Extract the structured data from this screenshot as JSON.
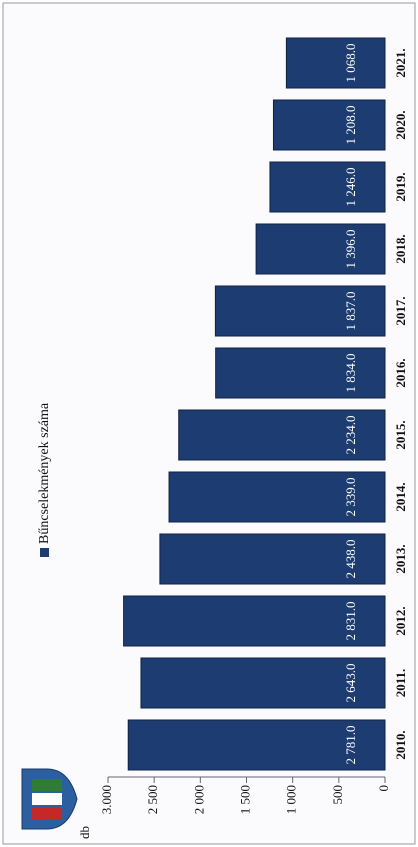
{
  "chart_data": {
    "type": "bar",
    "y_label": "db",
    "legend": "Bűncselekmények száma",
    "categories": [
      "2010.",
      "2011.",
      "2012.",
      "2013.",
      "2014.",
      "2015.",
      "2016.",
      "2017.",
      "2018.",
      "2019.",
      "2020.",
      "2021."
    ],
    "values": [
      2781,
      2643,
      2831,
      2438,
      2339,
      2234,
      1834,
      1837,
      1396,
      1246,
      1208,
      1068
    ],
    "value_labels": [
      "2 781.0",
      "2 643.0",
      "2 831.0",
      "2 438.0",
      "2 339.0",
      "2 234.0",
      "1 834.0",
      "1 837.0",
      "1 396.0",
      "1 246.0",
      "1 208.0",
      "1 068.0"
    ],
    "color": "#1d3d72",
    "ylim": [
      0,
      3000
    ],
    "yticks": [
      {
        "value": 3000,
        "label": "3.000"
      },
      {
        "value": 2500,
        "label": "2 500"
      },
      {
        "value": 2000,
        "label": "2 000"
      },
      {
        "value": 1500,
        "label": "1 500"
      },
      {
        "value": 1000,
        "label": "1 000"
      },
      500,
      0
    ]
  }
}
